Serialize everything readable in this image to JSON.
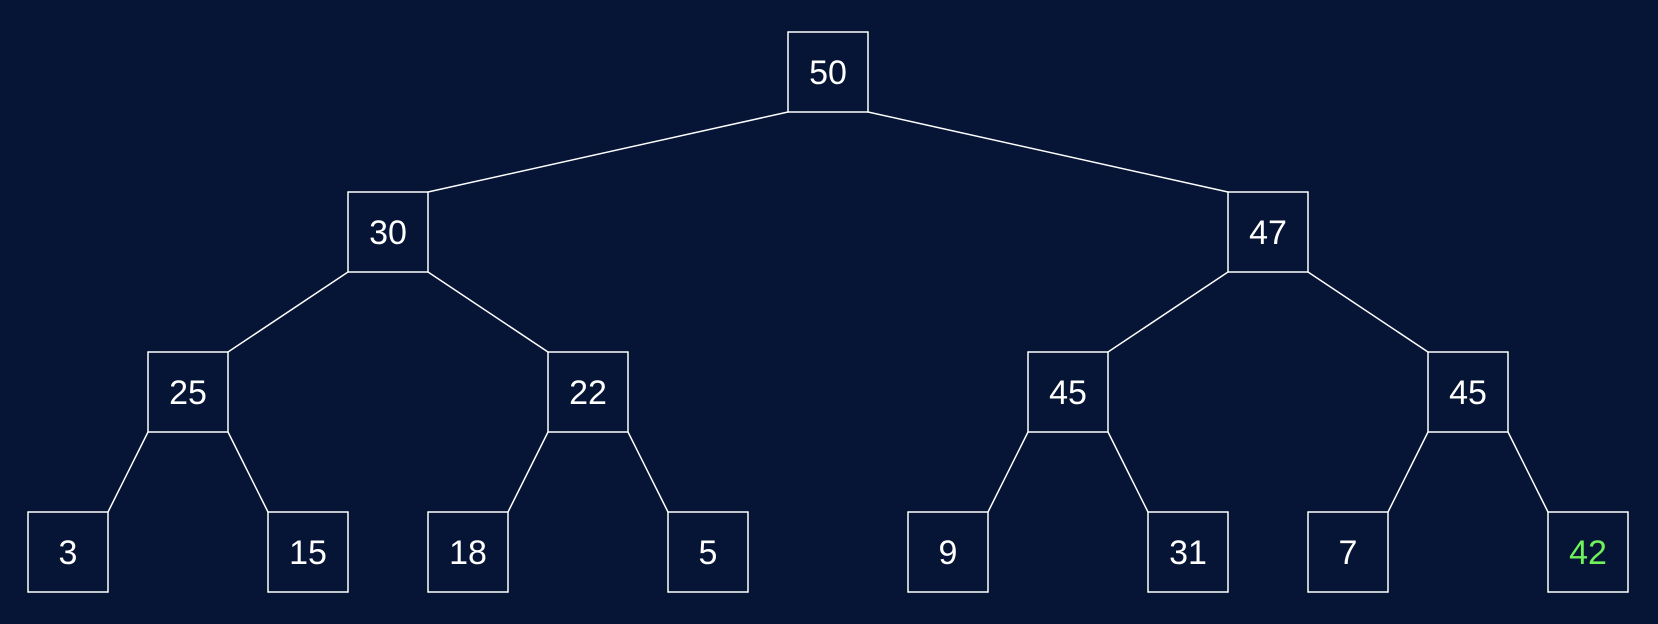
{
  "colors": {
    "background": "#061535",
    "line": "#ffffff",
    "node_border": "#ffffff",
    "node_text": "#ffffff",
    "highlight_text": "#6ef15a"
  },
  "tree": {
    "nodes": [
      {
        "id": "n0",
        "value": "50"
      },
      {
        "id": "n1",
        "value": "30"
      },
      {
        "id": "n2",
        "value": "47"
      },
      {
        "id": "n3",
        "value": "25"
      },
      {
        "id": "n4",
        "value": "22"
      },
      {
        "id": "n5",
        "value": "45"
      },
      {
        "id": "n6",
        "value": "45"
      },
      {
        "id": "n7",
        "value": "3"
      },
      {
        "id": "n8",
        "value": "15"
      },
      {
        "id": "n9",
        "value": "18"
      },
      {
        "id": "n10",
        "value": "5"
      },
      {
        "id": "n11",
        "value": "9"
      },
      {
        "id": "n12",
        "value": "31"
      },
      {
        "id": "n13",
        "value": "7"
      },
      {
        "id": "n14",
        "value": "42",
        "highlight": true
      }
    ],
    "edges": [
      [
        "n0",
        "n1"
      ],
      [
        "n0",
        "n2"
      ],
      [
        "n1",
        "n3"
      ],
      [
        "n1",
        "n4"
      ],
      [
        "n2",
        "n5"
      ],
      [
        "n2",
        "n6"
      ],
      [
        "n3",
        "n7"
      ],
      [
        "n3",
        "n8"
      ],
      [
        "n4",
        "n9"
      ],
      [
        "n4",
        "n10"
      ],
      [
        "n5",
        "n11"
      ],
      [
        "n5",
        "n12"
      ],
      [
        "n6",
        "n13"
      ],
      [
        "n6",
        "n14"
      ]
    ]
  }
}
